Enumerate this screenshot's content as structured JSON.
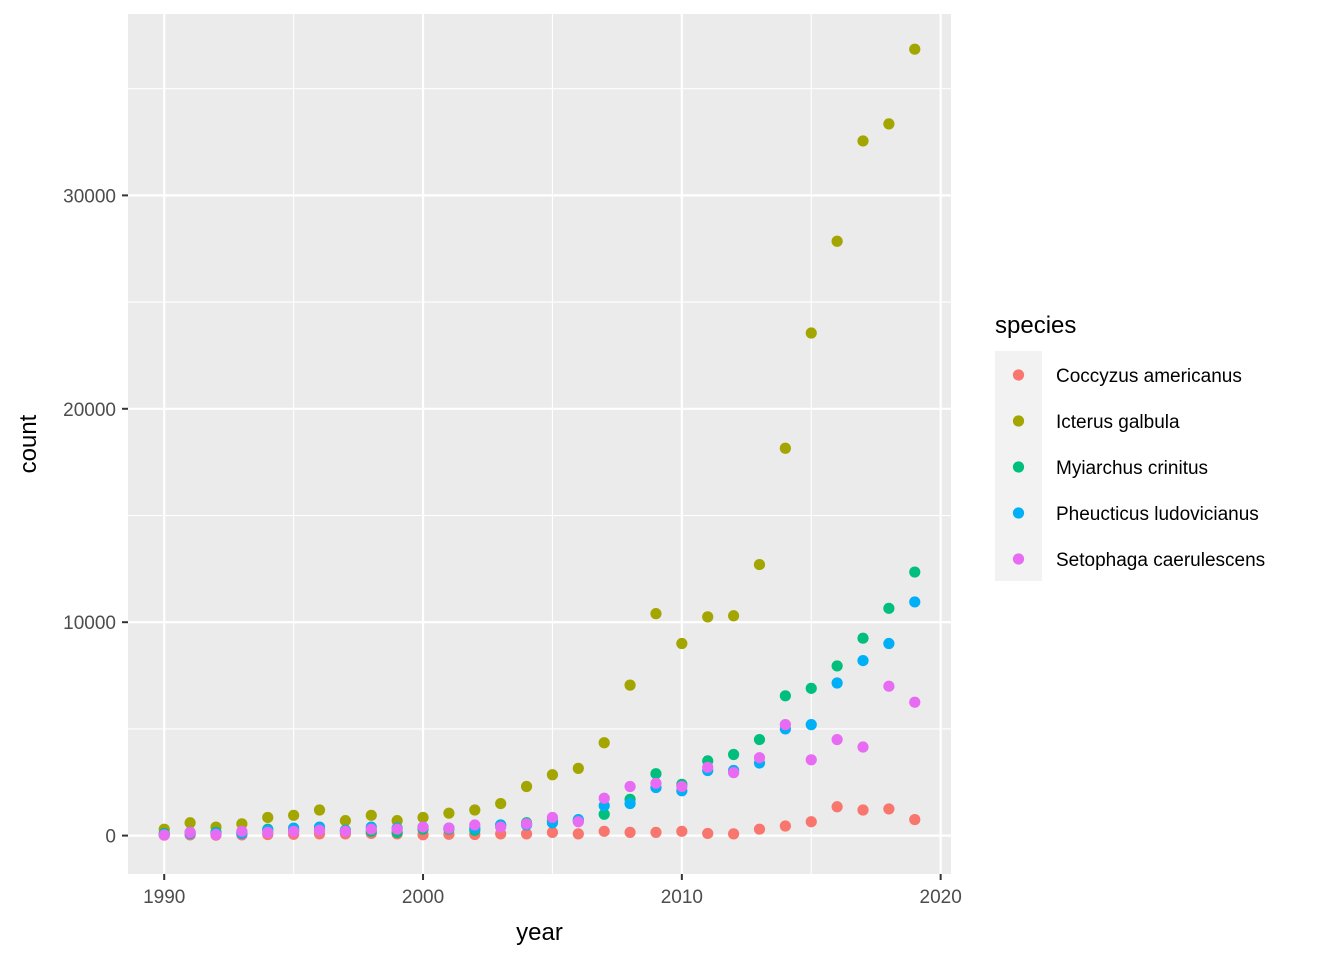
{
  "chart_data": {
    "type": "scatter",
    "title": "",
    "xlabel": "year",
    "ylabel": "count",
    "xlim": [
      1988.6,
      2020.4
    ],
    "ylim": [
      -1800,
      38500
    ],
    "x_ticks": [
      1990,
      2000,
      2010,
      2020
    ],
    "y_ticks": [
      0,
      10000,
      20000,
      30000
    ],
    "x_tick_labels": [
      "1990",
      "2000",
      "2010",
      "2020"
    ],
    "y_tick_labels": [
      "0",
      "10000",
      "20000",
      "30000"
    ],
    "grid": true,
    "legend": {
      "title": "species",
      "position": "right"
    },
    "x": [
      1990,
      1991,
      1992,
      1993,
      1994,
      1995,
      1996,
      1997,
      1998,
      1999,
      2000,
      2001,
      2002,
      2003,
      2004,
      2005,
      2006,
      2007,
      2008,
      2009,
      2010,
      2011,
      2012,
      2013,
      2014,
      2015,
      2016,
      2017,
      2018,
      2019
    ],
    "series": [
      {
        "name": "Coccyzus americanus",
        "color": "#F8766D",
        "values": [
          20,
          30,
          20,
          30,
          50,
          60,
          80,
          80,
          100,
          80,
          40,
          60,
          50,
          80,
          80,
          150,
          80,
          200,
          150,
          150,
          200,
          100,
          80,
          300,
          450,
          650,
          1350,
          1200,
          1250,
          750
        ]
      },
      {
        "name": "Icterus galbula",
        "color": "#A3A500",
        "values": [
          300,
          600,
          400,
          550,
          850,
          950,
          1200,
          700,
          950,
          700,
          850,
          1050,
          1200,
          1500,
          2300,
          2850,
          3150,
          4350,
          7050,
          10400,
          9000,
          10250,
          10300,
          12700,
          18150,
          23550,
          27850,
          32550,
          33350,
          36850
        ]
      },
      {
        "name": "Myiarchus crinitus",
        "color": "#00BF7D",
        "values": [
          100,
          150,
          150,
          150,
          300,
          250,
          300,
          200,
          200,
          150,
          300,
          300,
          250,
          500,
          600,
          700,
          700,
          1000,
          1700,
          2900,
          2400,
          3500,
          3800,
          4500,
          6550,
          6900,
          7950,
          9250,
          10650,
          12350
        ]
      },
      {
        "name": "Pheucticus ludovicianus",
        "color": "#00B0F6",
        "values": [
          50,
          100,
          100,
          100,
          250,
          350,
          400,
          250,
          400,
          350,
          400,
          350,
          350,
          500,
          500,
          600,
          750,
          1400,
          1500,
          2250,
          2100,
          3050,
          3050,
          3400,
          5000,
          5200,
          7150,
          8200,
          9000,
          10950
        ]
      },
      {
        "name": "Setophaga caerulescens",
        "color": "#E76BF3",
        "values": [
          30,
          150,
          50,
          200,
          150,
          200,
          250,
          200,
          300,
          300,
          400,
          350,
          500,
          400,
          550,
          850,
          650,
          1750,
          2300,
          2450,
          2300,
          3200,
          2950,
          3650,
          5200,
          3550,
          4500,
          4150,
          7000,
          6250
        ]
      }
    ]
  }
}
